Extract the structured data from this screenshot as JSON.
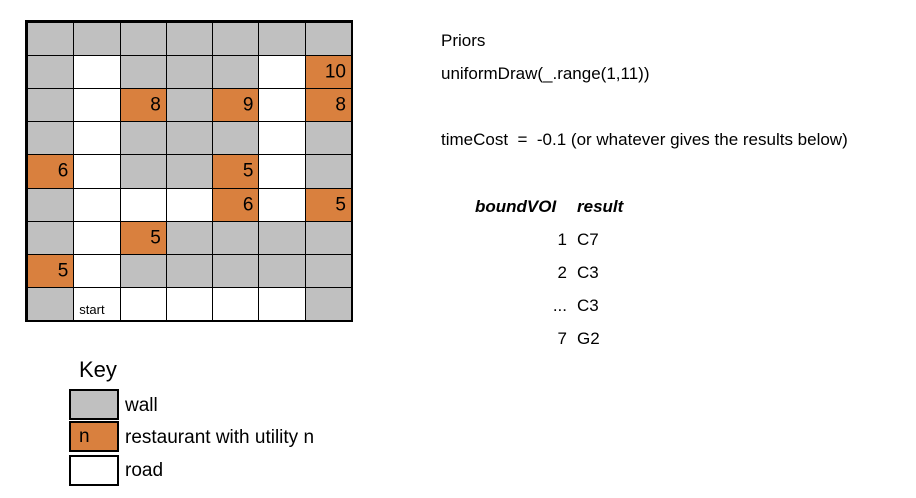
{
  "colors": {
    "wall": "#c0c0c0",
    "road": "#ffffff",
    "restaurant": "#d9803e",
    "line": "#000000"
  },
  "grid": {
    "cols": 7,
    "rows": 9,
    "cells": [
      [
        "wall",
        "wall",
        "wall",
        "wall",
        "wall",
        "wall",
        "wall"
      ],
      [
        "wall",
        "road",
        "wall",
        "wall",
        "wall",
        "road",
        "R:10"
      ],
      [
        "wall",
        "road",
        "R:8",
        "wall",
        "R:9",
        "road",
        "R:8"
      ],
      [
        "wall",
        "road",
        "wall",
        "wall",
        "wall",
        "road",
        "wall"
      ],
      [
        "R:6",
        "road",
        "wall",
        "wall",
        "R:5",
        "road",
        "wall"
      ],
      [
        "wall",
        "road",
        "road",
        "road",
        "R:6",
        "road",
        "R:5"
      ],
      [
        "wall",
        "road",
        "R:5",
        "wall",
        "wall",
        "wall",
        "wall"
      ],
      [
        "R:5",
        "road",
        "wall",
        "wall",
        "wall",
        "wall",
        "wall"
      ],
      [
        "wall",
        "S:start",
        "road",
        "road",
        "road",
        "road",
        "wall"
      ]
    ]
  },
  "key": {
    "title": "Key",
    "items": [
      {
        "type": "wall",
        "symbol": "",
        "label": "wall"
      },
      {
        "type": "restaurant",
        "symbol": "n",
        "label": "restaurant with utility n"
      },
      {
        "type": "road",
        "symbol": "",
        "label": "road"
      }
    ]
  },
  "priors": {
    "title": "Priors",
    "draw": "uniformDraw(_.range(1,11))",
    "time_cost": "timeCost  =  -0.1 (or whatever gives the results below)"
  },
  "results": {
    "headers": [
      "boundVOI",
      "result"
    ],
    "rows": [
      {
        "bound": "1",
        "result": "C7"
      },
      {
        "bound": "2",
        "result": "C3"
      },
      {
        "bound": "...",
        "result": "C3"
      },
      {
        "bound": "7",
        "result": "G2"
      }
    ]
  }
}
